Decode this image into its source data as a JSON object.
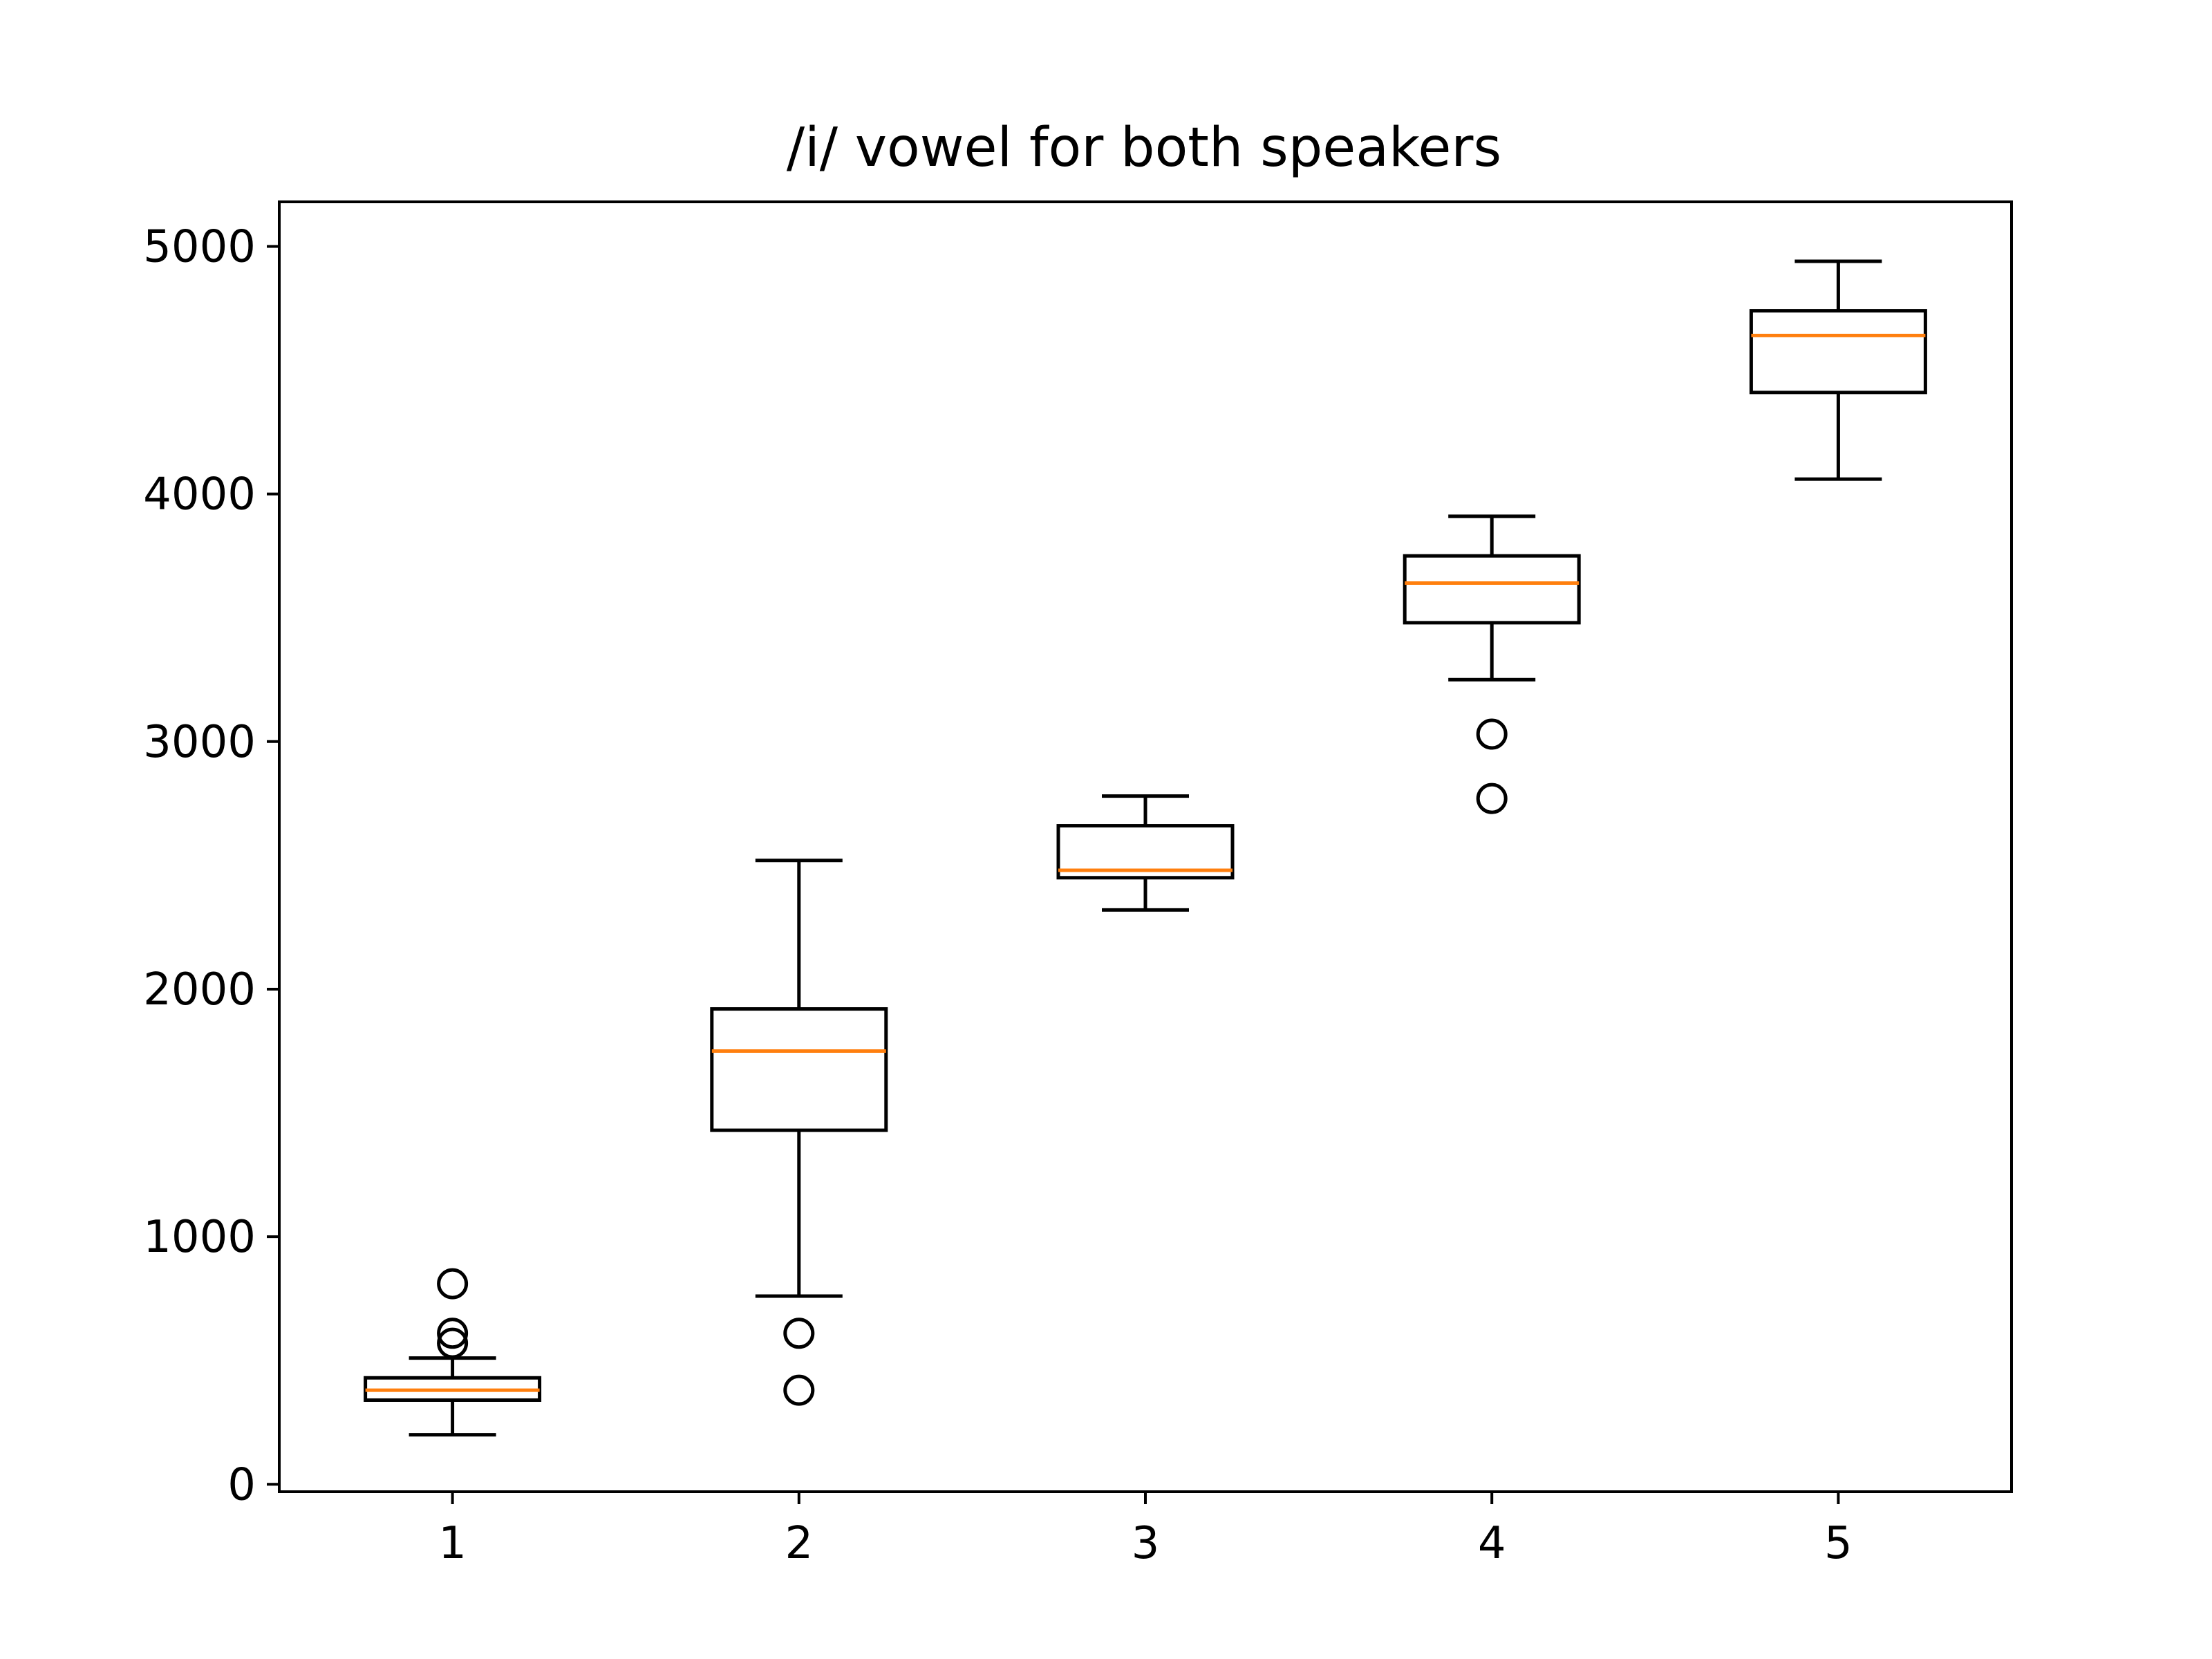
{
  "chart_data": {
    "type": "box",
    "title": "/i/ vowel for both speakers",
    "xlabel": "",
    "ylabel": "",
    "categories": [
      "1",
      "2",
      "3",
      "4",
      "5"
    ],
    "x_ticks": [
      "1",
      "2",
      "3",
      "4",
      "5"
    ],
    "y_ticks": [
      "0",
      "1000",
      "2000",
      "3000",
      "4000",
      "5000"
    ],
    "ylim": [
      -30,
      5180
    ],
    "grid": false,
    "legend": "none",
    "boxes": [
      {
        "category": "1",
        "whisker_low": 200,
        "q1": 340,
        "median": 380,
        "q3": 430,
        "whisker_high": 510,
        "outliers": [
          570,
          610,
          810
        ]
      },
      {
        "category": "2",
        "whisker_low": 760,
        "q1": 1430,
        "median": 1750,
        "q3": 1920,
        "whisker_high": 2520,
        "outliers": [
          380,
          610
        ]
      },
      {
        "category": "3",
        "whisker_low": 2320,
        "q1": 2450,
        "median": 2480,
        "q3": 2660,
        "whisker_high": 2780,
        "outliers": []
      },
      {
        "category": "4",
        "whisker_low": 3250,
        "q1": 3480,
        "median": 3640,
        "q3": 3750,
        "whisker_high": 3910,
        "outliers": [
          2770,
          3030
        ]
      },
      {
        "category": "5",
        "whisker_low": 4060,
        "q1": 4410,
        "median": 4640,
        "q3": 4740,
        "whisker_high": 4940,
        "outliers": []
      }
    ],
    "colors": {
      "box": "#000000",
      "median": "#ff7f0e",
      "outlier": "#000000",
      "axes": "#000000",
      "background": "#ffffff"
    }
  }
}
